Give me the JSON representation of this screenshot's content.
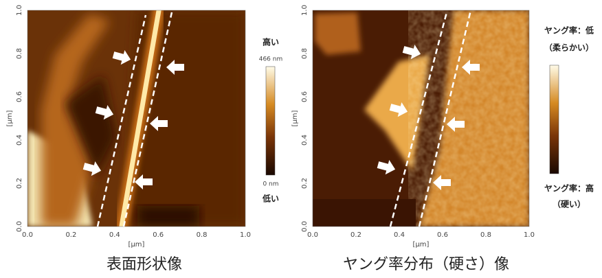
{
  "panels": [
    {
      "caption": "表面形状像",
      "x_axis_label": "[μm]",
      "y_axis_label": "[μm]",
      "x_ticks": [
        "0.0",
        "0.2",
        "0.4",
        "0.6",
        "0.8",
        "1.0"
      ],
      "y_ticks": [
        "0.0",
        "0.2",
        "0.4",
        "0.6",
        "0.8",
        "1.0"
      ],
      "colorbar": {
        "top_labels": [
          "高い",
          "466 nm"
        ],
        "bottom_labels": [
          "0 nm",
          "低い"
        ]
      }
    },
    {
      "caption": "ヤング率分布（硬さ）像",
      "x_axis_label": "[μm]",
      "y_axis_label": "[μm]",
      "x_ticks": [
        "0.0",
        "0.2",
        "0.4",
        "0.6",
        "0.8",
        "1.0"
      ],
      "y_ticks": [
        "0.0",
        "0.2",
        "0.4",
        "0.6",
        "0.8",
        "1.0"
      ],
      "colorbar": {
        "top_labels": [
          "ヤング率：低",
          "（柔らかい）"
        ],
        "bottom_labels": [
          "ヤング率：高",
          "（硬い）"
        ]
      }
    }
  ]
}
